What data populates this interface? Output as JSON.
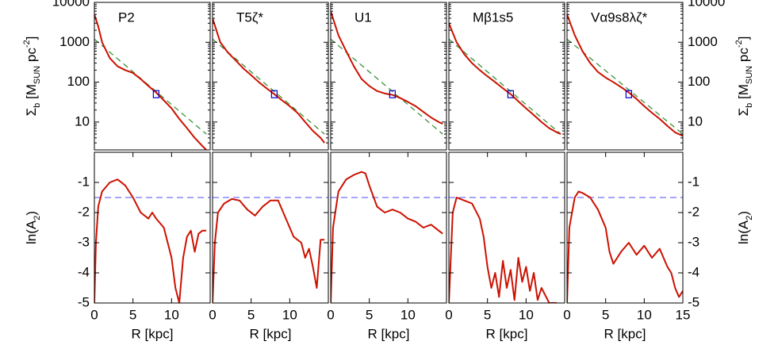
{
  "chart_data": [
    {
      "type": "line",
      "title": "P2",
      "log_y": true,
      "xlim": [
        0,
        15
      ],
      "ylim": [
        2,
        10000
      ],
      "yticks": [
        10,
        100,
        1000,
        10000
      ],
      "y_labels_side": "left",
      "ylabel": [
        "Σ",
        "b",
        " [M",
        "SUN",
        " pc",
        "-2",
        "]"
      ],
      "x": [
        0,
        0.5,
        1,
        2,
        3,
        4,
        5,
        6,
        7,
        8,
        9,
        10,
        11,
        12,
        13,
        14,
        14.5
      ],
      "values": [
        5000,
        2500,
        1000,
        400,
        250,
        200,
        170,
        120,
        80,
        55,
        35,
        22,
        12,
        7,
        4,
        2.5,
        2
      ],
      "color": "#cc1100",
      "fit": {
        "x": [
          0,
          14.5
        ],
        "values": [
          1200,
          5
        ],
        "color": "#2a8a2a"
      },
      "marker": {
        "x": 8,
        "value": 50,
        "color": "#0000cc"
      }
    },
    {
      "type": "line",
      "title": "T5ζ*",
      "log_y": true,
      "xlim": [
        0,
        15
      ],
      "ylim": [
        2,
        10000
      ],
      "yticks": [
        10,
        100,
        1000,
        10000
      ],
      "y_labels_side": "none",
      "x": [
        0,
        0.5,
        1,
        2,
        3,
        4,
        5,
        6,
        7,
        8,
        9,
        10,
        11,
        12,
        13,
        14,
        14.5
      ],
      "values": [
        4000,
        2000,
        1000,
        550,
        350,
        220,
        150,
        100,
        70,
        50,
        35,
        25,
        17,
        10,
        6,
        4,
        3
      ],
      "color": "#cc1100",
      "fit": {
        "x": [
          0,
          14.5
        ],
        "values": [
          1200,
          5
        ],
        "color": "#2a8a2a"
      },
      "marker": {
        "x": 8,
        "value": 50,
        "color": "#0000cc"
      }
    },
    {
      "type": "line",
      "title": "U1",
      "log_y": true,
      "xlim": [
        0,
        15
      ],
      "ylim": [
        2,
        10000
      ],
      "yticks": [
        10,
        100,
        1000,
        10000
      ],
      "y_labels_side": "none",
      "x": [
        0,
        1,
        2,
        3,
        4,
        5,
        6,
        7,
        8,
        9,
        10,
        11,
        12,
        13,
        14,
        14.5
      ],
      "values": [
        6000,
        1500,
        600,
        250,
        120,
        80,
        60,
        52,
        48,
        40,
        32,
        25,
        18,
        13,
        10,
        9
      ],
      "color": "#cc1100",
      "fit": {
        "x": [
          0,
          14.5
        ],
        "values": [
          1200,
          5
        ],
        "color": "#2a8a2a"
      },
      "marker": {
        "x": 8,
        "value": 50,
        "color": "#0000cc"
      }
    },
    {
      "type": "line",
      "title": "Mβ1s5",
      "log_y": true,
      "xlim": [
        0,
        15
      ],
      "ylim": [
        2,
        10000
      ],
      "yticks": [
        10,
        100,
        1000,
        10000
      ],
      "y_labels_side": "none",
      "x": [
        0,
        1,
        2,
        3,
        4,
        5,
        6,
        7,
        8,
        9,
        10,
        11,
        12,
        13,
        14,
        14.5
      ],
      "values": [
        3000,
        1000,
        500,
        300,
        200,
        140,
        100,
        70,
        50,
        33,
        22,
        15,
        10,
        7,
        5.5,
        5
      ],
      "color": "#cc1100",
      "fit": {
        "x": [
          0,
          14.5
        ],
        "values": [
          1200,
          5
        ],
        "color": "#2a8a2a"
      },
      "marker": {
        "x": 8,
        "value": 50,
        "color": "#0000cc"
      }
    },
    {
      "type": "line",
      "title": "Vα9s8λζ*",
      "log_y": true,
      "xlim": [
        0,
        15
      ],
      "ylim": [
        2,
        10000
      ],
      "yticks": [
        10,
        100,
        1000,
        10000
      ],
      "y_labels_side": "right",
      "ylabel": [
        "Σ",
        "b",
        " [M",
        "SUN",
        " pc",
        "-2",
        "]"
      ],
      "x": [
        0,
        1,
        2,
        3,
        4,
        5,
        6,
        7,
        8,
        9,
        10,
        11,
        12,
        13,
        14,
        15
      ],
      "values": [
        5000,
        1500,
        600,
        300,
        180,
        130,
        100,
        75,
        55,
        38,
        25,
        17,
        12,
        8,
        5.5,
        4.5
      ],
      "color": "#cc1100",
      "fit": {
        "x": [
          0,
          15
        ],
        "values": [
          1200,
          5
        ],
        "color": "#2a8a2a"
      },
      "marker": {
        "x": 8,
        "value": 50,
        "color": "#0000cc"
      }
    },
    {
      "type": "line",
      "xlim": [
        0,
        15
      ],
      "ylim": [
        -5,
        0
      ],
      "yticks": [
        -5,
        -4,
        -3,
        -2,
        -1
      ],
      "y_labels_side": "left",
      "xticks": [
        0,
        5,
        10
      ],
      "xlabel": "R [kpc]",
      "ylabel": [
        "ln(A",
        "2",
        ")"
      ],
      "x": [
        0,
        0.2,
        0.5,
        1,
        2,
        3,
        4,
        5,
        6,
        7,
        7.5,
        8,
        9,
        9.5,
        10,
        10.5,
        11,
        11.5,
        12,
        12.5,
        13,
        13.5,
        14,
        14.5
      ],
      "values": [
        -5,
        -3,
        -1.8,
        -1.3,
        -1.0,
        -0.9,
        -1.1,
        -1.5,
        -2.0,
        -2.2,
        -2.0,
        -2.2,
        -2.5,
        -3.0,
        -3.5,
        -4.5,
        -5,
        -3.5,
        -2.8,
        -2.6,
        -3.3,
        -2.7,
        -2.6,
        -2.6
      ],
      "color": "#cc1100",
      "threshold": {
        "value": -1.5,
        "color": "#7070ff"
      }
    },
    {
      "type": "line",
      "xlim": [
        0,
        15
      ],
      "ylim": [
        -5,
        0
      ],
      "yticks": [
        -5,
        -4,
        -3,
        -2,
        -1
      ],
      "y_labels_side": "none",
      "xticks": [
        0,
        5,
        10
      ],
      "xlabel": "R [kpc]",
      "x": [
        0,
        0.3,
        0.7,
        1.5,
        2.5,
        3.5,
        4.5,
        5.5,
        6.5,
        7.5,
        8.5,
        9.5,
        10.5,
        11.5,
        12,
        12.5,
        13,
        13.5,
        14,
        14.5
      ],
      "values": [
        -5,
        -3,
        -2,
        -1.7,
        -1.55,
        -1.6,
        -1.9,
        -2.1,
        -1.8,
        -1.6,
        -1.6,
        -2.2,
        -2.8,
        -3,
        -3.5,
        -3.2,
        -3.8,
        -4.5,
        -2.9,
        -2.9
      ],
      "color": "#cc1100",
      "threshold": {
        "value": -1.5,
        "color": "#7070ff"
      }
    },
    {
      "type": "line",
      "xlim": [
        0,
        15
      ],
      "ylim": [
        -5,
        0
      ],
      "yticks": [
        -5,
        -4,
        -3,
        -2,
        -1
      ],
      "y_labels_side": "none",
      "xticks": [
        0,
        5,
        10
      ],
      "xlabel": "R [kpc]",
      "x": [
        0,
        0.3,
        1,
        2,
        3,
        4,
        4.5,
        5,
        6,
        7,
        8,
        9,
        10,
        11,
        12,
        13,
        14,
        14.5
      ],
      "values": [
        -5,
        -2.5,
        -1.3,
        -0.9,
        -0.75,
        -0.65,
        -0.7,
        -1.1,
        -1.8,
        -2.0,
        -1.9,
        -2.0,
        -2.2,
        -2.3,
        -2.5,
        -2.4,
        -2.6,
        -2.7
      ],
      "color": "#cc1100",
      "threshold": {
        "value": -1.5,
        "color": "#7070ff"
      }
    },
    {
      "type": "line",
      "xlim": [
        0,
        15
      ],
      "ylim": [
        -5,
        0
      ],
      "yticks": [
        -5,
        -4,
        -3,
        -2,
        -1
      ],
      "y_labels_side": "none",
      "xticks": [
        0,
        5,
        10
      ],
      "xlabel": "R [kpc]",
      "x": [
        0,
        0.5,
        1,
        2,
        3,
        4,
        4.5,
        5,
        5.5,
        6,
        6.5,
        7,
        7.5,
        8,
        8.5,
        9,
        9.5,
        10,
        10.5,
        11,
        11.5,
        12,
        13,
        14
      ],
      "values": [
        -5,
        -2,
        -1.5,
        -1.6,
        -1.7,
        -2.2,
        -2.8,
        -3.8,
        -4.5,
        -4,
        -4.8,
        -3.6,
        -4.5,
        -3.9,
        -4.9,
        -3.5,
        -4.3,
        -3.8,
        -4.6,
        -4,
        -4.9,
        -4.5,
        -5,
        -5
      ],
      "color": "#cc1100",
      "threshold": {
        "value": -1.5,
        "color": "#7070ff"
      }
    },
    {
      "type": "line",
      "xlim": [
        0,
        15
      ],
      "ylim": [
        -5,
        0
      ],
      "yticks": [
        -5,
        -4,
        -3,
        -2,
        -1
      ],
      "y_labels_side": "right",
      "xticks": [
        0,
        5,
        10,
        15
      ],
      "xlabel": "R [kpc]",
      "ylabel": [
        "ln(A",
        "2",
        ")"
      ],
      "x": [
        0,
        0.3,
        1,
        1.5,
        2,
        3,
        4,
        5,
        5.5,
        6,
        7,
        8,
        9,
        10,
        11,
        12,
        13,
        13.5,
        14,
        14.5,
        15
      ],
      "values": [
        -5,
        -2.5,
        -1.5,
        -1.3,
        -1.35,
        -1.5,
        -1.9,
        -2.5,
        -3.3,
        -3.7,
        -3.3,
        -3.0,
        -3.4,
        -3.1,
        -3.5,
        -3.2,
        -3.8,
        -4.0,
        -4.5,
        -4.8,
        -4.6
      ],
      "color": "#cc1100",
      "threshold": {
        "value": -1.5,
        "color": "#7070ff"
      }
    }
  ]
}
